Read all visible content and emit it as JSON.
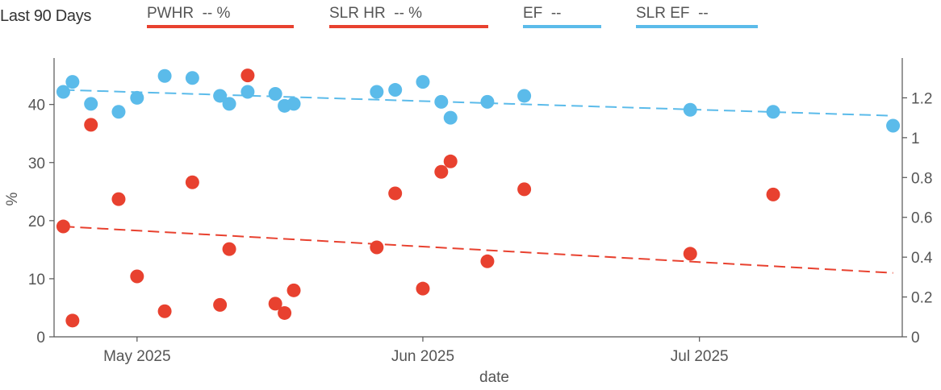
{
  "header": {
    "period": "Last 90 Days",
    "legend": [
      {
        "label": "PWHR  -- %",
        "color": "#e8412f"
      },
      {
        "label": "SLR HR  -- %",
        "color": "#e8412f"
      },
      {
        "label": "EF  --",
        "color": "#5bbbea"
      },
      {
        "label": "SLR EF  --",
        "color": "#5bbbea"
      }
    ]
  },
  "chart_data": {
    "type": "scatter",
    "xlabel": "date",
    "ylabel": "%",
    "ylim_left": [
      0,
      48
    ],
    "ylim_right": [
      0,
      1.4
    ],
    "x_ticks": [
      "2025-05-01",
      "2025-06-01",
      "2025-07-01"
    ],
    "x_tick_labels": [
      "May 2025",
      "Jun 2025",
      "Jul 2025"
    ],
    "xlim": [
      "2025-04-22",
      "2025-07-23"
    ],
    "y_left_ticks": [
      0,
      10,
      20,
      30,
      40
    ],
    "y_right_ticks": [
      0,
      0.2,
      0.4,
      0.6,
      0.8,
      1,
      1.2
    ],
    "y_right_tick_labels": [
      "0",
      "0.2",
      "0.4",
      "0.6",
      "0.8",
      "1",
      "1.2"
    ],
    "colors": {
      "hr": "#e8412f",
      "ef": "#5bbbea",
      "axis": "#555555"
    },
    "series": [
      {
        "group": "hr",
        "axis": "left",
        "points": [
          {
            "x": "2025-04-23",
            "y": 19.0
          },
          {
            "x": "2025-04-24",
            "y": 2.8
          },
          {
            "x": "2025-04-26",
            "y": 36.5
          },
          {
            "x": "2025-04-29",
            "y": 23.7
          },
          {
            "x": "2025-05-01",
            "y": 10.4
          },
          {
            "x": "2025-05-04",
            "y": 4.4
          },
          {
            "x": "2025-05-07",
            "y": 26.6
          },
          {
            "x": "2025-05-10",
            "y": 5.5
          },
          {
            "x": "2025-05-11",
            "y": 15.1
          },
          {
            "x": "2025-05-13",
            "y": 45.0
          },
          {
            "x": "2025-05-16",
            "y": 5.7
          },
          {
            "x": "2025-05-17",
            "y": 4.1
          },
          {
            "x": "2025-05-18",
            "y": 8.0
          },
          {
            "x": "2025-05-27",
            "y": 15.4
          },
          {
            "x": "2025-05-29",
            "y": 24.7
          },
          {
            "x": "2025-06-01",
            "y": 8.3
          },
          {
            "x": "2025-06-03",
            "y": 28.4
          },
          {
            "x": "2025-06-04",
            "y": 30.2
          },
          {
            "x": "2025-06-08",
            "y": 13.0
          },
          {
            "x": "2025-06-12",
            "y": 25.4
          },
          {
            "x": "2025-06-30",
            "y": 14.3
          },
          {
            "x": "2025-07-09",
            "y": 24.5
          }
        ],
        "trend": {
          "from": [
            "2025-04-23",
            19.0
          ],
          "to": [
            "2025-07-22",
            11.0
          ]
        }
      },
      {
        "group": "ef",
        "axis": "right",
        "points": [
          {
            "x": "2025-04-23",
            "y": 1.23
          },
          {
            "x": "2025-04-24",
            "y": 1.28
          },
          {
            "x": "2025-04-26",
            "y": 1.17
          },
          {
            "x": "2025-04-29",
            "y": 1.13
          },
          {
            "x": "2025-05-01",
            "y": 1.2
          },
          {
            "x": "2025-05-04",
            "y": 1.31
          },
          {
            "x": "2025-05-07",
            "y": 1.3
          },
          {
            "x": "2025-05-10",
            "y": 1.21
          },
          {
            "x": "2025-05-11",
            "y": 1.17
          },
          {
            "x": "2025-05-13",
            "y": 1.23
          },
          {
            "x": "2025-05-16",
            "y": 1.22
          },
          {
            "x": "2025-05-17",
            "y": 1.16
          },
          {
            "x": "2025-05-18",
            "y": 1.17
          },
          {
            "x": "2025-05-27",
            "y": 1.23
          },
          {
            "x": "2025-05-29",
            "y": 1.24
          },
          {
            "x": "2025-06-01",
            "y": 1.28
          },
          {
            "x": "2025-06-03",
            "y": 1.18
          },
          {
            "x": "2025-06-04",
            "y": 1.1
          },
          {
            "x": "2025-06-08",
            "y": 1.18
          },
          {
            "x": "2025-06-12",
            "y": 1.21
          },
          {
            "x": "2025-06-30",
            "y": 1.14
          },
          {
            "x": "2025-07-09",
            "y": 1.13
          },
          {
            "x": "2025-07-22",
            "y": 1.06
          }
        ],
        "trend": {
          "from": [
            "2025-04-23",
            1.24
          ],
          "to": [
            "2025-07-22",
            1.11
          ]
        }
      }
    ]
  }
}
